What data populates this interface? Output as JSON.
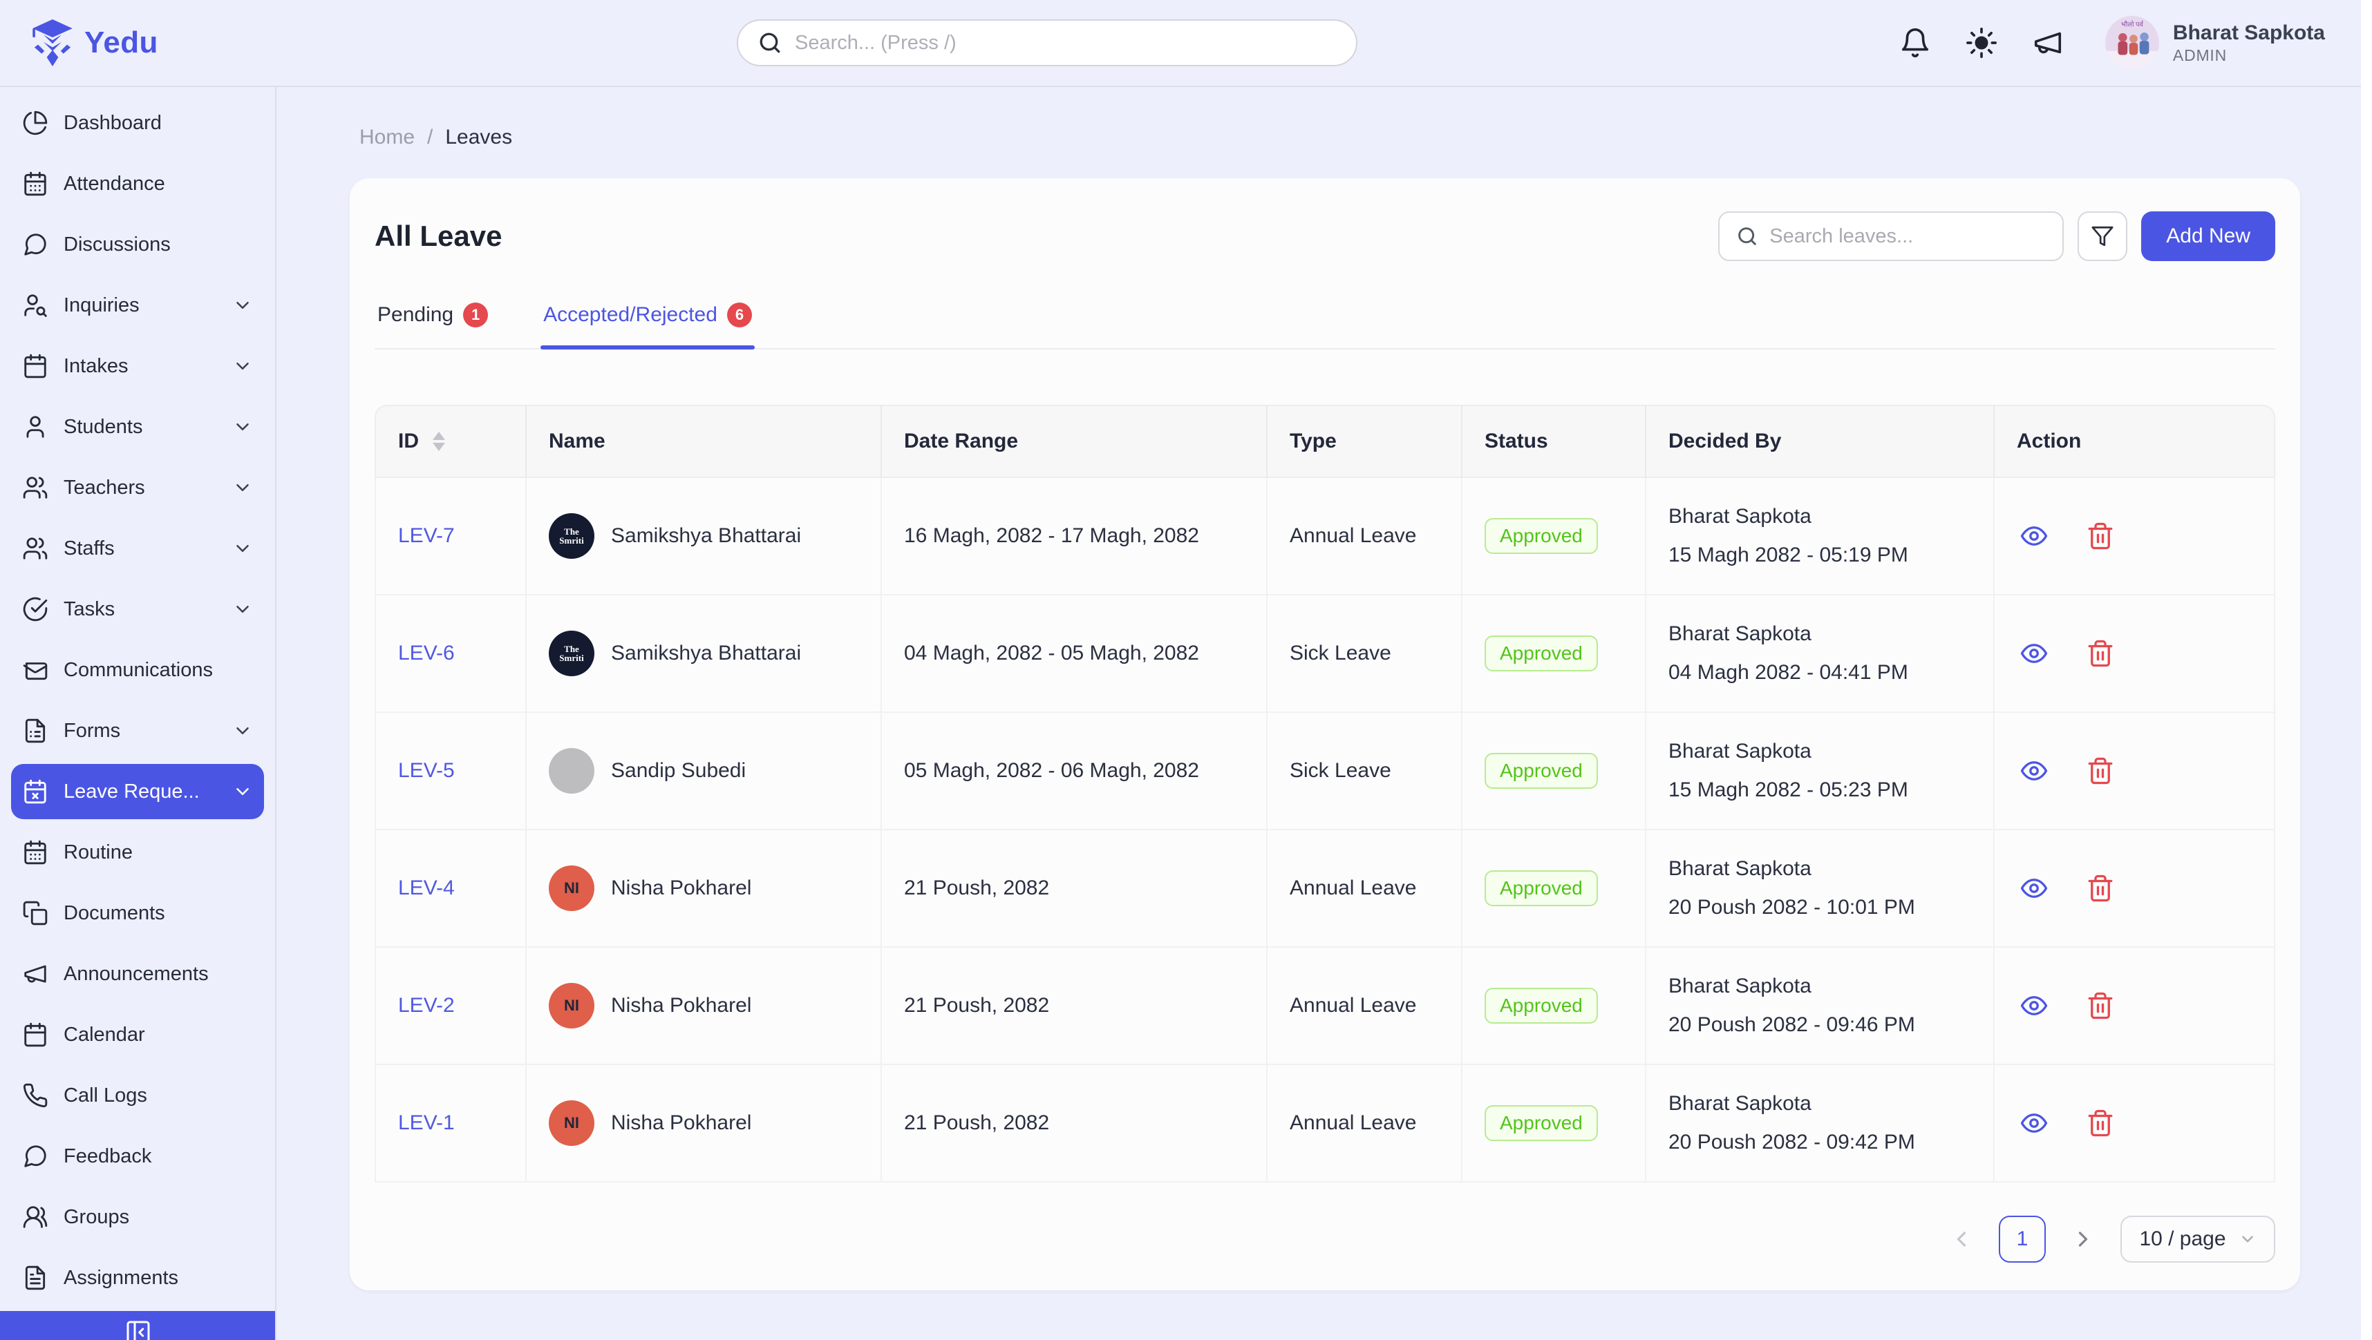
{
  "colors": {
    "accent": "#4b55e3",
    "page_bg": "#edeffc",
    "card_bg": "#fcfcfd",
    "badge_red": "#e5484d",
    "approved_text": "#52c41a",
    "approved_bg": "#f6ffed",
    "approved_border": "#b7eb8f",
    "delete_red": "#e5484d"
  },
  "brand": {
    "name": "Yedu",
    "logo_icon": "graduate-mascot-icon"
  },
  "header": {
    "search_placeholder": "Search... (Press /)",
    "icons": [
      "bell-icon",
      "sun-icon",
      "megaphone-icon"
    ],
    "user": {
      "name": "Bharat Sapkota",
      "role": "ADMIN"
    }
  },
  "sidebar": {
    "items": [
      {
        "label": "Dashboard",
        "icon": "chart-pie-icon",
        "expandable": false,
        "active": false
      },
      {
        "label": "Attendance",
        "icon": "calendar-days-icon",
        "expandable": false,
        "active": false
      },
      {
        "label": "Discussions",
        "icon": "message-circle-icon",
        "expandable": false,
        "active": false
      },
      {
        "label": "Inquiries",
        "icon": "user-search-icon",
        "expandable": true,
        "active": false
      },
      {
        "label": "Intakes",
        "icon": "calendar-icon",
        "expandable": true,
        "active": false
      },
      {
        "label": "Students",
        "icon": "user-icon",
        "expandable": true,
        "active": false
      },
      {
        "label": "Teachers",
        "icon": "users-icon",
        "expandable": true,
        "active": false
      },
      {
        "label": "Staffs",
        "icon": "users-icon",
        "expandable": true,
        "active": false
      },
      {
        "label": "Tasks",
        "icon": "circle-check-icon",
        "expandable": true,
        "active": false
      },
      {
        "label": "Communications",
        "icon": "mail-icon",
        "expandable": false,
        "active": false
      },
      {
        "label": "Forms",
        "icon": "file-form-icon",
        "expandable": true,
        "active": false
      },
      {
        "label": "Leave Reque...",
        "icon": "calendar-x-icon",
        "expandable": true,
        "active": true
      },
      {
        "label": "Routine",
        "icon": "calendar-days-icon",
        "expandable": false,
        "active": false
      },
      {
        "label": "Documents",
        "icon": "copy-icon",
        "expandable": false,
        "active": false
      },
      {
        "label": "Announcements",
        "icon": "megaphone-icon",
        "expandable": false,
        "active": false
      },
      {
        "label": "Calendar",
        "icon": "calendar-icon",
        "expandable": false,
        "active": false
      },
      {
        "label": "Call Logs",
        "icon": "phone-icon",
        "expandable": false,
        "active": false
      },
      {
        "label": "Feedback",
        "icon": "message-circle-icon",
        "expandable": false,
        "active": false
      },
      {
        "label": "Groups",
        "icon": "users-round-icon",
        "expandable": false,
        "active": false
      },
      {
        "label": "Assignments",
        "icon": "file-text-icon",
        "expandable": false,
        "active": false
      }
    ],
    "collapse_icon": "panel-left-close-icon"
  },
  "breadcrumb": {
    "home": "Home",
    "separator": "/",
    "current": "Leaves"
  },
  "page": {
    "title": "All Leave",
    "search_placeholder": "Search leaves...",
    "filter_icon": "funnel-icon",
    "add_button": "Add New"
  },
  "tabs": [
    {
      "label": "Pending",
      "count": "1",
      "active": false
    },
    {
      "label": "Accepted/Rejected",
      "count": "6",
      "active": true
    }
  ],
  "table": {
    "columns": [
      {
        "label": "ID",
        "sortable": true
      },
      {
        "label": "Name",
        "sortable": false
      },
      {
        "label": "Date Range",
        "sortable": false
      },
      {
        "label": "Type",
        "sortable": false
      },
      {
        "label": "Status",
        "sortable": false
      },
      {
        "label": "Decided By",
        "sortable": false
      },
      {
        "label": "Action",
        "sortable": false
      }
    ],
    "rows": [
      {
        "id": "LEV-7",
        "name": "Samikshya Bhattarai",
        "avatar": {
          "kind": "logo",
          "line1": "The",
          "line2": "Smriti",
          "bg": "#141a2f"
        },
        "date_range": "16 Magh, 2082 - 17 Magh, 2082",
        "type": "Annual Leave",
        "status": "Approved",
        "decided_by": "Bharat Sapkota",
        "decided_at": "15 Magh 2082 - 05:19 PM"
      },
      {
        "id": "LEV-6",
        "name": "Samikshya Bhattarai",
        "avatar": {
          "kind": "logo",
          "line1": "The",
          "line2": "Smriti",
          "bg": "#141a2f"
        },
        "date_range": "04 Magh, 2082 - 05 Magh, 2082",
        "type": "Sick Leave",
        "status": "Approved",
        "decided_by": "Bharat Sapkota",
        "decided_at": "04 Magh 2082 - 04:41 PM"
      },
      {
        "id": "LEV-5",
        "name": "Sandip Subedi",
        "avatar": {
          "kind": "blank",
          "bg": "#bdbdbf"
        },
        "date_range": "05 Magh, 2082 - 06 Magh, 2082",
        "type": "Sick Leave",
        "status": "Approved",
        "decided_by": "Bharat Sapkota",
        "decided_at": "15 Magh 2082 - 05:23 PM"
      },
      {
        "id": "LEV-4",
        "name": "Nisha Pokharel",
        "avatar": {
          "kind": "initials",
          "text": "NI",
          "bg": "#df5f4a"
        },
        "date_range": "21 Poush, 2082",
        "type": "Annual Leave",
        "status": "Approved",
        "decided_by": "Bharat Sapkota",
        "decided_at": "20 Poush 2082 - 10:01 PM"
      },
      {
        "id": "LEV-2",
        "name": "Nisha Pokharel",
        "avatar": {
          "kind": "initials",
          "text": "NI",
          "bg": "#df5f4a"
        },
        "date_range": "21 Poush, 2082",
        "type": "Annual Leave",
        "status": "Approved",
        "decided_by": "Bharat Sapkota",
        "decided_at": "20 Poush 2082 - 09:46 PM"
      },
      {
        "id": "LEV-1",
        "name": "Nisha Pokharel",
        "avatar": {
          "kind": "initials",
          "text": "NI",
          "bg": "#df5f4a"
        },
        "date_range": "21 Poush, 2082",
        "type": "Annual Leave",
        "status": "Approved",
        "decided_by": "Bharat Sapkota",
        "decided_at": "20 Poush 2082 - 09:42 PM"
      }
    ],
    "action_icons": [
      "eye-icon",
      "trash-icon"
    ]
  },
  "pagination": {
    "prev_icon": "chevron-left-icon",
    "current_page": "1",
    "next_icon": "chevron-right-icon",
    "page_size": "10 / page"
  }
}
